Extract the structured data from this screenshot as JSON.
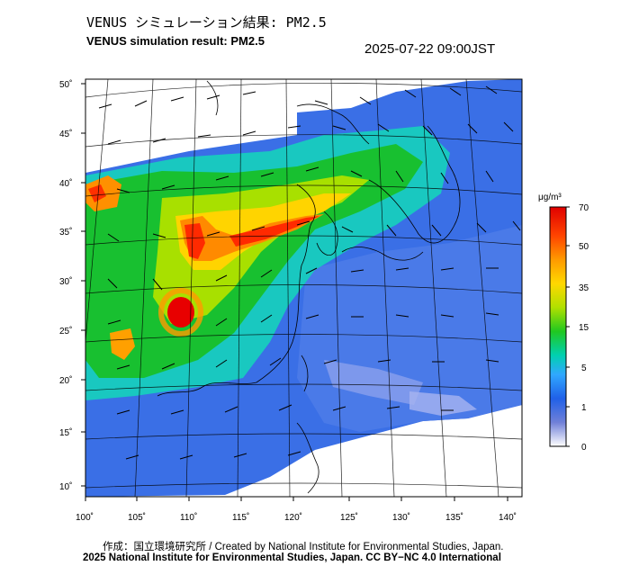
{
  "title_jp": "VENUS シミュレーション結果: PM2.5",
  "title_en": "VENUS simulation result: PM2.5",
  "timestamp": "2025-07-22 09:00JST",
  "map": {
    "lon_ticks": [
      "100˚",
      "105˚",
      "110˚",
      "115˚",
      "120˚",
      "125˚",
      "130˚",
      "135˚",
      "140˚"
    ],
    "lat_ticks": [
      "50˚",
      "45˚",
      "40˚",
      "35˚",
      "30˚",
      "25˚",
      "20˚",
      "15˚",
      "10˚"
    ],
    "lon_range": [
      100,
      142
    ],
    "lat_range": [
      9,
      51
    ]
  },
  "colorbar": {
    "unit": "μg/m³",
    "tick_labels": [
      "70",
      "50",
      "35",
      "15",
      "5",
      "1",
      "0"
    ],
    "colors": [
      "#e00000",
      "#ff5a00",
      "#ffd000",
      "#a0e000",
      "#10c020",
      "#00d0c0",
      "#40a0ff",
      "#2050e0",
      "#6070d0",
      "#ffffff"
    ]
  },
  "credit_line1": "作成：国立環境研究所 / Created by National Institute for Environmental Studies, Japan.",
  "credit_line2": "2025 National Institute for Environmental Studies, Japan. CC BY−NC 4.0 International"
}
